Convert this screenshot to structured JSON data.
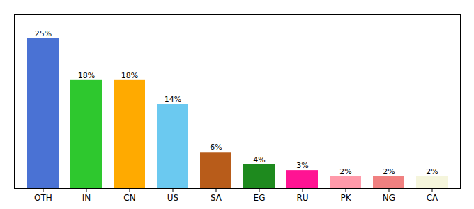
{
  "chart_data": {
    "type": "bar",
    "categories": [
      "OTH",
      "IN",
      "CN",
      "US",
      "SA",
      "EG",
      "RU",
      "PK",
      "NG",
      "CA"
    ],
    "values": [
      25,
      18,
      18,
      14,
      6,
      4,
      3,
      2,
      2,
      2
    ],
    "value_labels": [
      "25%",
      "18%",
      "18%",
      "14%",
      "6%",
      "4%",
      "3%",
      "2%",
      "2%",
      "2%"
    ],
    "colors": [
      "#4a72d4",
      "#2ec82e",
      "#ffaa00",
      "#6bc9f0",
      "#b85c1a",
      "#1e8a1e",
      "#ff1493",
      "#ff9aaa",
      "#f08080",
      "#f5f5dc"
    ],
    "ylim": [
      0,
      29
    ],
    "data_labels": true,
    "tick_labels": "x",
    "grid": false
  }
}
